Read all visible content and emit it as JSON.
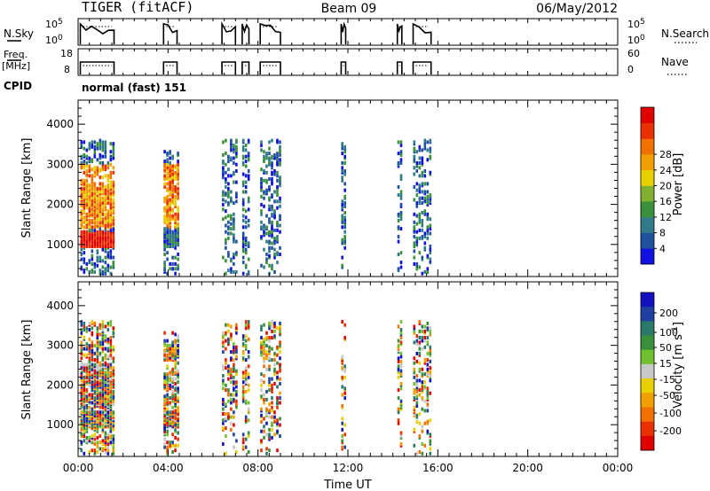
{
  "header": {
    "radar": "TIGER (fitACF)",
    "beam": "Beam 09",
    "date": "06/May/2012"
  },
  "params": {
    "nsky_label": "N.Sky",
    "nsky_ticks": [
      "10^5",
      "10^0"
    ],
    "nsearch_label": "N.Search",
    "nsearch_ticks": [
      "10^5",
      "10^0"
    ],
    "freq_label_top": "Freq.",
    "freq_label_bottom": "[MHz]",
    "freq_ticks": [
      "18",
      "8"
    ],
    "nave_label": "Nave",
    "nave_ticks": [
      "60",
      "0"
    ],
    "cpid_label": "CPID",
    "cpid_value": "normal (fast) 151"
  },
  "chart_data": [
    {
      "type": "heatmap",
      "name": "power",
      "ylabel": "Slant Range [km]",
      "ylim": [
        200,
        4600
      ],
      "yticks": [
        1000,
        2000,
        3000,
        4000
      ],
      "xlabel": "Time UT",
      "xlim": [
        0,
        24
      ],
      "xticks": [
        "00:00",
        "04:00",
        "08:00",
        "12:00",
        "16:00",
        "20:00",
        "00:00"
      ],
      "colorbar": {
        "label": "Power [dB]",
        "ticks": [
          "4",
          "8",
          "12",
          "16",
          "20",
          "24",
          "28"
        ],
        "colors": [
          "#1010e0",
          "#2050a0",
          "#307a8a",
          "#3a8f3a",
          "#80b030",
          "#e8d000",
          "#f0a000",
          "#f07000",
          "#e83000",
          "#e00000"
        ]
      },
      "data_segments": [
        {
          "start": 0.1,
          "end": 1.6
        },
        {
          "start": 3.8,
          "end": 4.4
        },
        {
          "start": 6.4,
          "end": 7.0
        },
        {
          "start": 7.3,
          "end": 7.6
        },
        {
          "start": 8.1,
          "end": 9.0
        },
        {
          "start": 11.7,
          "end": 11.9
        },
        {
          "start": 14.2,
          "end": 14.4
        },
        {
          "start": 14.9,
          "end": 15.7
        }
      ]
    },
    {
      "type": "heatmap",
      "name": "velocity",
      "ylabel": "Slant Range [km]",
      "ylim": [
        200,
        4600
      ],
      "yticks": [
        1000,
        2000,
        3000,
        4000
      ],
      "xlabel": "Time UT",
      "xlim": [
        0,
        24
      ],
      "xticks": [
        "00:00",
        "04:00",
        "08:00",
        "12:00",
        "16:00",
        "20:00",
        "00:00"
      ],
      "colorbar": {
        "label": "Velocity [m s^-1]",
        "ticks": [
          "200",
          "100",
          "50",
          "15",
          "-15",
          "-50",
          "-100",
          "-200"
        ],
        "colors": [
          "#1010c0",
          "#2040a0",
          "#2a7a6a",
          "#3a8f3a",
          "#70c030",
          "#c8c8c8",
          "#e8d000",
          "#f0a000",
          "#f07000",
          "#e83000",
          "#e00000"
        ]
      }
    }
  ]
}
